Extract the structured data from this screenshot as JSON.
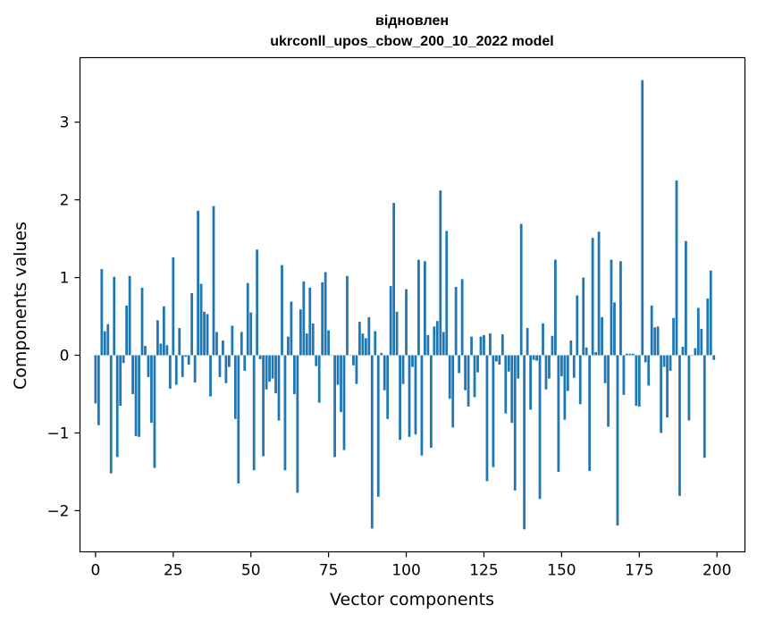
{
  "chart_data": {
    "type": "bar",
    "title": "відновлен\nukrconll_upos_cbow_200_10_2022 model",
    "xlabel": "Vector components",
    "ylabel": "Components values",
    "xlim": [
      -5,
      209
    ],
    "ylim": [
      -2.53,
      3.83
    ],
    "x_ticks": [
      0,
      25,
      50,
      75,
      100,
      125,
      150,
      175,
      200
    ],
    "y_ticks": [
      -2,
      -1,
      0,
      1,
      2,
      3
    ],
    "y_tick_labels": [
      "−2",
      "−1",
      "0",
      "1",
      "2",
      "3"
    ],
    "x": [
      0,
      1,
      2,
      3,
      4,
      5,
      6,
      7,
      8,
      9,
      10,
      11,
      12,
      13,
      14,
      15,
      16,
      17,
      18,
      19,
      20,
      21,
      22,
      23,
      24,
      25,
      26,
      27,
      28,
      29,
      30,
      31,
      32,
      33,
      34,
      35,
      36,
      37,
      38,
      39,
      40,
      41,
      42,
      43,
      44,
      45,
      46,
      47,
      48,
      49,
      50,
      51,
      52,
      53,
      54,
      55,
      56,
      57,
      58,
      59,
      60,
      61,
      62,
      63,
      64,
      65,
      66,
      67,
      68,
      69,
      70,
      71,
      72,
      73,
      74,
      75,
      76,
      77,
      78,
      79,
      80,
      81,
      82,
      83,
      84,
      85,
      86,
      87,
      88,
      89,
      90,
      91,
      92,
      93,
      94,
      95,
      96,
      97,
      98,
      99,
      100,
      101,
      102,
      103,
      104,
      105,
      106,
      107,
      108,
      109,
      110,
      111,
      112,
      113,
      114,
      115,
      116,
      117,
      118,
      119,
      120,
      121,
      122,
      123,
      124,
      125,
      126,
      127,
      128,
      129,
      130,
      131,
      132,
      133,
      134,
      135,
      136,
      137,
      138,
      139,
      140,
      141,
      142,
      143,
      144,
      145,
      146,
      147,
      148,
      149,
      150,
      151,
      152,
      153,
      154,
      155,
      156,
      157,
      158,
      159,
      160,
      161,
      162,
      163,
      164,
      165,
      166,
      167,
      168,
      169,
      170,
      171,
      172,
      173,
      174,
      175,
      176,
      177,
      178,
      179,
      180,
      181,
      182,
      183,
      184,
      185,
      186,
      187,
      188,
      189,
      190,
      191,
      192,
      193,
      194,
      195,
      196,
      197,
      198,
      199
    ],
    "values": [
      -0.62,
      -0.9,
      1.11,
      0.31,
      0.4,
      -1.52,
      1.01,
      -1.31,
      -0.65,
      -0.1,
      0.64,
      1.02,
      -0.5,
      -1.04,
      -1.05,
      0.87,
      0.12,
      -0.28,
      -0.87,
      -1.45,
      0.45,
      0.15,
      0.63,
      0.13,
      -0.43,
      1.26,
      -0.38,
      0.35,
      -0.28,
      -0.02,
      -0.12,
      0.8,
      -0.35,
      1.86,
      0.92,
      0.56,
      0.53,
      -0.53,
      1.92,
      0.3,
      -0.28,
      0.19,
      -0.36,
      -0.15,
      0.38,
      -0.82,
      -1.65,
      0.3,
      -0.2,
      0.93,
      0.55,
      -1.48,
      1.36,
      -0.05,
      -1.3,
      -0.44,
      -0.34,
      -0.3,
      -0.49,
      -0.84,
      1.16,
      -1.48,
      0.24,
      0.69,
      -0.5,
      -1.77,
      0.59,
      0.95,
      0.28,
      0.87,
      0.41,
      -0.14,
      -0.61,
      0.94,
      1.07,
      0.32,
      0.0,
      -1.31,
      -0.38,
      -0.73,
      -1.22,
      1.02,
      0.0,
      -0.13,
      -0.37,
      0.43,
      0.28,
      0.22,
      0.49,
      -2.23,
      0.31,
      -1.82,
      0.03,
      -0.45,
      -0.82,
      0.89,
      1.96,
      0.56,
      -1.09,
      -0.37,
      0.85,
      -1.05,
      -0.15,
      -1.02,
      1.23,
      -1.29,
      1.21,
      0.26,
      -1.19,
      0.37,
      0.44,
      2.12,
      0.3,
      1.6,
      -0.56,
      -0.93,
      0.88,
      -0.23,
      0.98,
      -0.45,
      -0.66,
      0.24,
      -0.54,
      -0.22,
      0.24,
      0.26,
      -1.62,
      0.28,
      -1.44,
      -0.08,
      -0.12,
      0.27,
      -0.75,
      -0.21,
      -0.87,
      -1.74,
      -0.3,
      1.69,
      -2.24,
      0.35,
      -0.7,
      -0.06,
      -0.07,
      -1.85,
      0.41,
      -0.44,
      -0.3,
      0.25,
      1.23,
      -1.5,
      -0.27,
      -0.83,
      -0.46,
      0.19,
      -0.29,
      0.77,
      -0.63,
      1.0,
      0.1,
      -1.49,
      1.51,
      0.04,
      1.59,
      0.49,
      -0.36,
      -0.92,
      1.23,
      0.68,
      -2.19,
      1.21,
      -0.51,
      0.02,
      0.02,
      0.02,
      -0.65,
      -0.66,
      3.54,
      -0.09,
      -0.39,
      0.64,
      0.36,
      0.37,
      -1.0,
      -0.15,
      -0.8,
      -0.2,
      0.48,
      2.25,
      -1.81,
      0.11,
      1.47,
      -0.84,
      0.0,
      0.09,
      0.61,
      0.34,
      -1.32,
      0.73,
      1.09,
      -0.06
    ],
    "bar_color": "#1f77b4",
    "grid": false,
    "legend": "none"
  }
}
